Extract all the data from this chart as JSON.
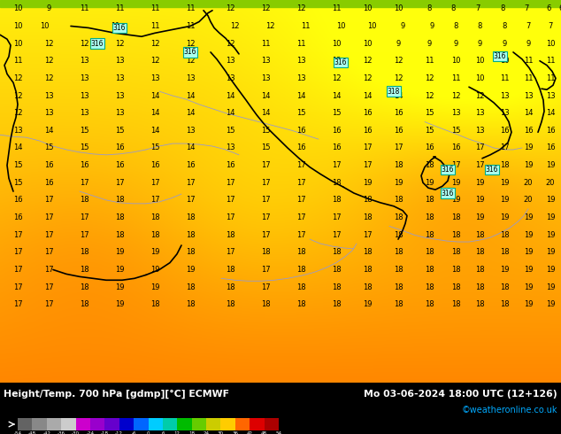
{
  "title_left": "Height/Temp. 700 hPa [gdmp][°C] ECMWF",
  "title_right": "Mo 03-06-2024 18:00 UTC (12+126)",
  "credit": "©weatheronline.co.uk",
  "colorbar_values": [
    -54,
    -48,
    -42,
    -36,
    -30,
    -24,
    -18,
    -12,
    -6,
    0,
    6,
    12,
    18,
    24,
    30,
    36,
    42,
    48,
    54
  ],
  "colorbar_colors": [
    "#636363",
    "#888888",
    "#aaaaaa",
    "#cccccc",
    "#cc00cc",
    "#9900cc",
    "#6600cc",
    "#0000cc",
    "#0066ff",
    "#00ccff",
    "#00ccaa",
    "#00bb00",
    "#66cc00",
    "#cccc00",
    "#ffcc00",
    "#ff6600",
    "#dd0000",
    "#aa0000"
  ],
  "footer_bg": "#000000",
  "credit_color": "#00aaff",
  "map_top_color": "#ffee00",
  "map_bottom_color": "#ff8800",
  "warm_patch_color": "#ffaa00",
  "warm_patch_color2": "#ff9900",
  "contour_line_color": "#000000",
  "border_line_color": "#8888bb",
  "temp_text_color": "#000000",
  "label_bg_color": "#aaffff",
  "label_border_color": "#00aa88"
}
